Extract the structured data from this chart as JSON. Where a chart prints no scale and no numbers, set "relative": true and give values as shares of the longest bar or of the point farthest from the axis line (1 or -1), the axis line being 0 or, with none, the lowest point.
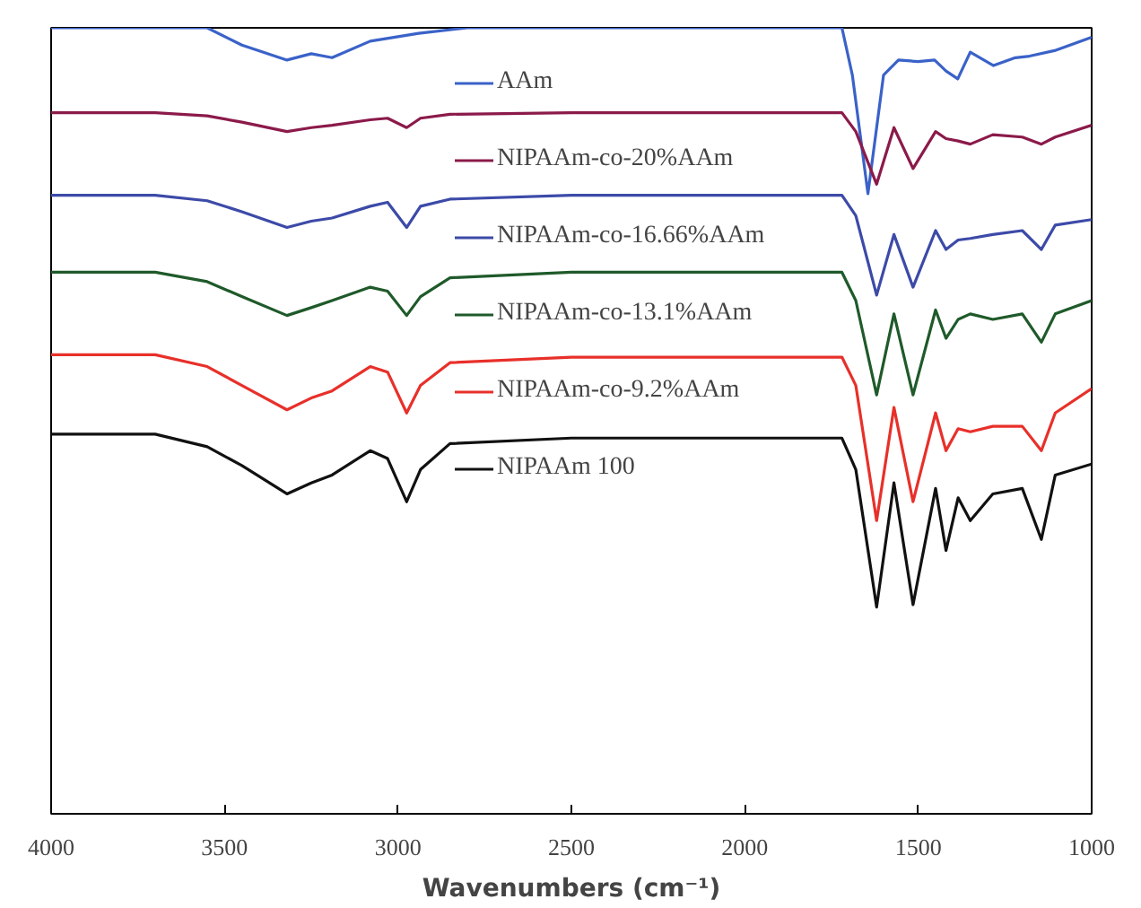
{
  "chart_data": {
    "type": "line",
    "relative": true,
    "xlabel": "Wavenumbers (cm⁻¹)",
    "xlim": [
      4000,
      1000
    ],
    "xticks": [
      4000,
      3500,
      3000,
      2500,
      2000,
      1500,
      1000
    ],
    "tick_labels": "x",
    "grid": false,
    "legend": "top",
    "marker": "none",
    "line_style": "solid",
    "x": [
      4000,
      3700,
      3550,
      3450,
      3320,
      3250,
      3190,
      3080,
      3030,
      2975,
      2935,
      2850,
      2500,
      2000,
      1720,
      1680,
      1620,
      1570,
      1515,
      1450,
      1420,
      1385,
      1350,
      1285,
      1200,
      1145,
      1105,
      1000
    ],
    "series": [
      {
        "name": "AAm",
        "color": "#3a62c8",
        "x": [
          4000,
          3550,
          3450,
          3320,
          3250,
          3190,
          3080,
          2940,
          2800,
          2500,
          2000,
          1720,
          1690,
          1645,
          1600,
          1557,
          1500,
          1453,
          1420,
          1386,
          1350,
          1283,
          1220,
          1179,
          1107,
          1000
        ],
        "values": [
          1.0,
          1.0,
          0.978,
          0.959,
          0.967,
          0.962,
          0.983,
          0.993,
          1.0,
          1.0,
          1.0,
          1.0,
          0.94,
          0.789,
          0.94,
          0.959,
          0.957,
          0.959,
          0.945,
          0.935,
          0.969,
          0.952,
          0.962,
          0.964,
          0.971,
          0.988
        ]
      },
      {
        "name": "NIPAAm-co-20%AAm",
        "color": "#8b1a4a",
        "values": [
          0.892,
          0.892,
          0.888,
          0.88,
          0.868,
          0.873,
          0.876,
          0.883,
          0.885,
          0.873,
          0.885,
          0.89,
          0.892,
          0.892,
          0.892,
          0.868,
          0.801,
          0.873,
          0.821,
          0.868,
          0.859,
          0.856,
          0.852,
          0.864,
          0.861,
          0.852,
          0.861,
          0.876
        ]
      },
      {
        "name": "NIPAAm-co-16.66%AAm",
        "color": "#3c4aa8",
        "values": [
          0.787,
          0.787,
          0.78,
          0.766,
          0.746,
          0.754,
          0.758,
          0.773,
          0.778,
          0.746,
          0.773,
          0.782,
          0.787,
          0.787,
          0.787,
          0.761,
          0.66,
          0.737,
          0.67,
          0.742,
          0.718,
          0.73,
          0.732,
          0.737,
          0.742,
          0.718,
          0.749,
          0.756
        ]
      },
      {
        "name": "NIPAAm-co-13.1%AAm",
        "color": "#1f5a2a",
        "values": [
          0.689,
          0.689,
          0.677,
          0.658,
          0.634,
          0.644,
          0.653,
          0.67,
          0.665,
          0.634,
          0.658,
          0.682,
          0.689,
          0.689,
          0.689,
          0.653,
          0.533,
          0.636,
          0.533,
          0.641,
          0.605,
          0.629,
          0.636,
          0.629,
          0.636,
          0.6,
          0.636,
          0.653
        ]
      },
      {
        "name": "NIPAAm-co-9.2%AAm",
        "color": "#e8302a",
        "values": [
          0.584,
          0.584,
          0.569,
          0.545,
          0.514,
          0.529,
          0.538,
          0.569,
          0.562,
          0.51,
          0.545,
          0.574,
          0.581,
          0.581,
          0.581,
          0.545,
          0.373,
          0.517,
          0.397,
          0.51,
          0.462,
          0.49,
          0.486,
          0.493,
          0.493,
          0.462,
          0.51,
          0.541
        ]
      },
      {
        "name": "NIPAAm 100",
        "color": "#111111",
        "values": [
          0.483,
          0.483,
          0.467,
          0.443,
          0.407,
          0.421,
          0.431,
          0.462,
          0.452,
          0.397,
          0.438,
          0.471,
          0.478,
          0.478,
          0.478,
          0.438,
          0.263,
          0.421,
          0.266,
          0.414,
          0.335,
          0.402,
          0.373,
          0.407,
          0.414,
          0.349,
          0.431,
          0.445
        ]
      }
    ]
  }
}
